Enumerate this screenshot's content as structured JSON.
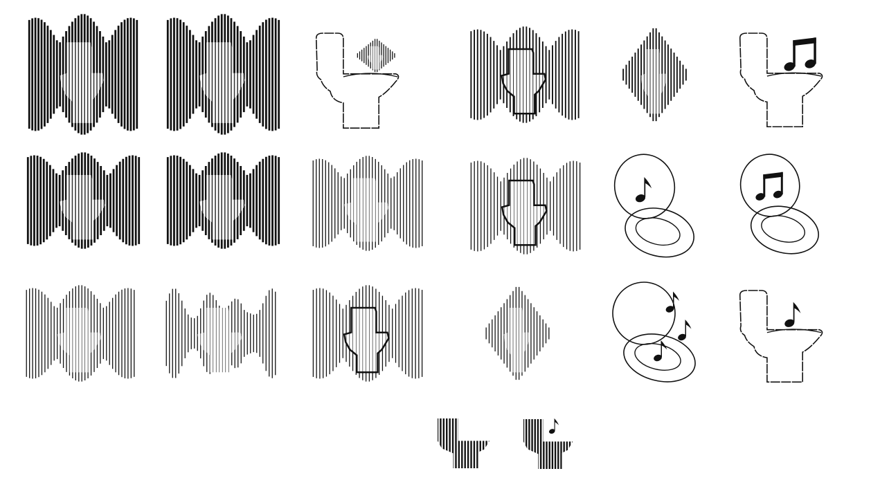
{
  "sheet": {
    "background": "#ffffff",
    "ink": "#111111"
  },
  "icons": [
    {
      "id": "r1c1",
      "name": "toilet-waveform-icon",
      "variant": "bars",
      "stroke": "heavy"
    },
    {
      "id": "r1c2",
      "name": "toilet-waveform-icon",
      "variant": "bars",
      "stroke": "heavy"
    },
    {
      "id": "r1c3",
      "name": "toilet-soundwave-outline-icon",
      "variant": "outline-wave"
    },
    {
      "id": "r1c4",
      "name": "toilet-waveform-icon",
      "variant": "bars-outline",
      "stroke": "medium"
    },
    {
      "id": "r1c5",
      "name": "toilet-waveform-icon",
      "variant": "bars-diamond",
      "stroke": "medium"
    },
    {
      "id": "r1c6",
      "name": "toilet-music-note-icon",
      "variant": "outline-notes",
      "notes": "beamed"
    },
    {
      "id": "r2c1",
      "name": "toilet-waveform-icon",
      "variant": "bars",
      "stroke": "heavy"
    },
    {
      "id": "r2c2",
      "name": "toilet-waveform-icon",
      "variant": "bars",
      "stroke": "heavy"
    },
    {
      "id": "r2c3",
      "name": "toilet-waveform-icon",
      "variant": "bars",
      "stroke": "light"
    },
    {
      "id": "r2c4",
      "name": "toilet-waveform-icon",
      "variant": "bars-outline",
      "stroke": "light"
    },
    {
      "id": "r2c5",
      "name": "toilet-seat-music-note-icon",
      "variant": "seat-notes",
      "notes": "single"
    },
    {
      "id": "r2c6",
      "name": "toilet-seat-music-note-icon",
      "variant": "seat-notes",
      "notes": "beamed"
    },
    {
      "id": "r3c1",
      "name": "toilet-waveform-icon",
      "variant": "bars",
      "stroke": "light"
    },
    {
      "id": "r3c2",
      "name": "toilet-waveform-icon",
      "variant": "bars-skewed",
      "stroke": "light"
    },
    {
      "id": "r3c3",
      "name": "toilet-waveform-icon",
      "variant": "bars-outline",
      "stroke": "light"
    },
    {
      "id": "r3c4",
      "name": "toilet-waveform-icon",
      "variant": "bars-diamond",
      "stroke": "light"
    },
    {
      "id": "r3c5",
      "name": "toilet-seat-music-note-icon",
      "variant": "seat-notes",
      "notes": "triple"
    },
    {
      "id": "r3c6",
      "name": "toilet-music-note-icon",
      "variant": "outline-notes",
      "notes": "single"
    },
    {
      "id": "r4c1",
      "name": "toilet-striped-icon",
      "variant": "striped"
    },
    {
      "id": "r4c2",
      "name": "toilet-striped-music-note-icon",
      "variant": "striped-note"
    }
  ]
}
